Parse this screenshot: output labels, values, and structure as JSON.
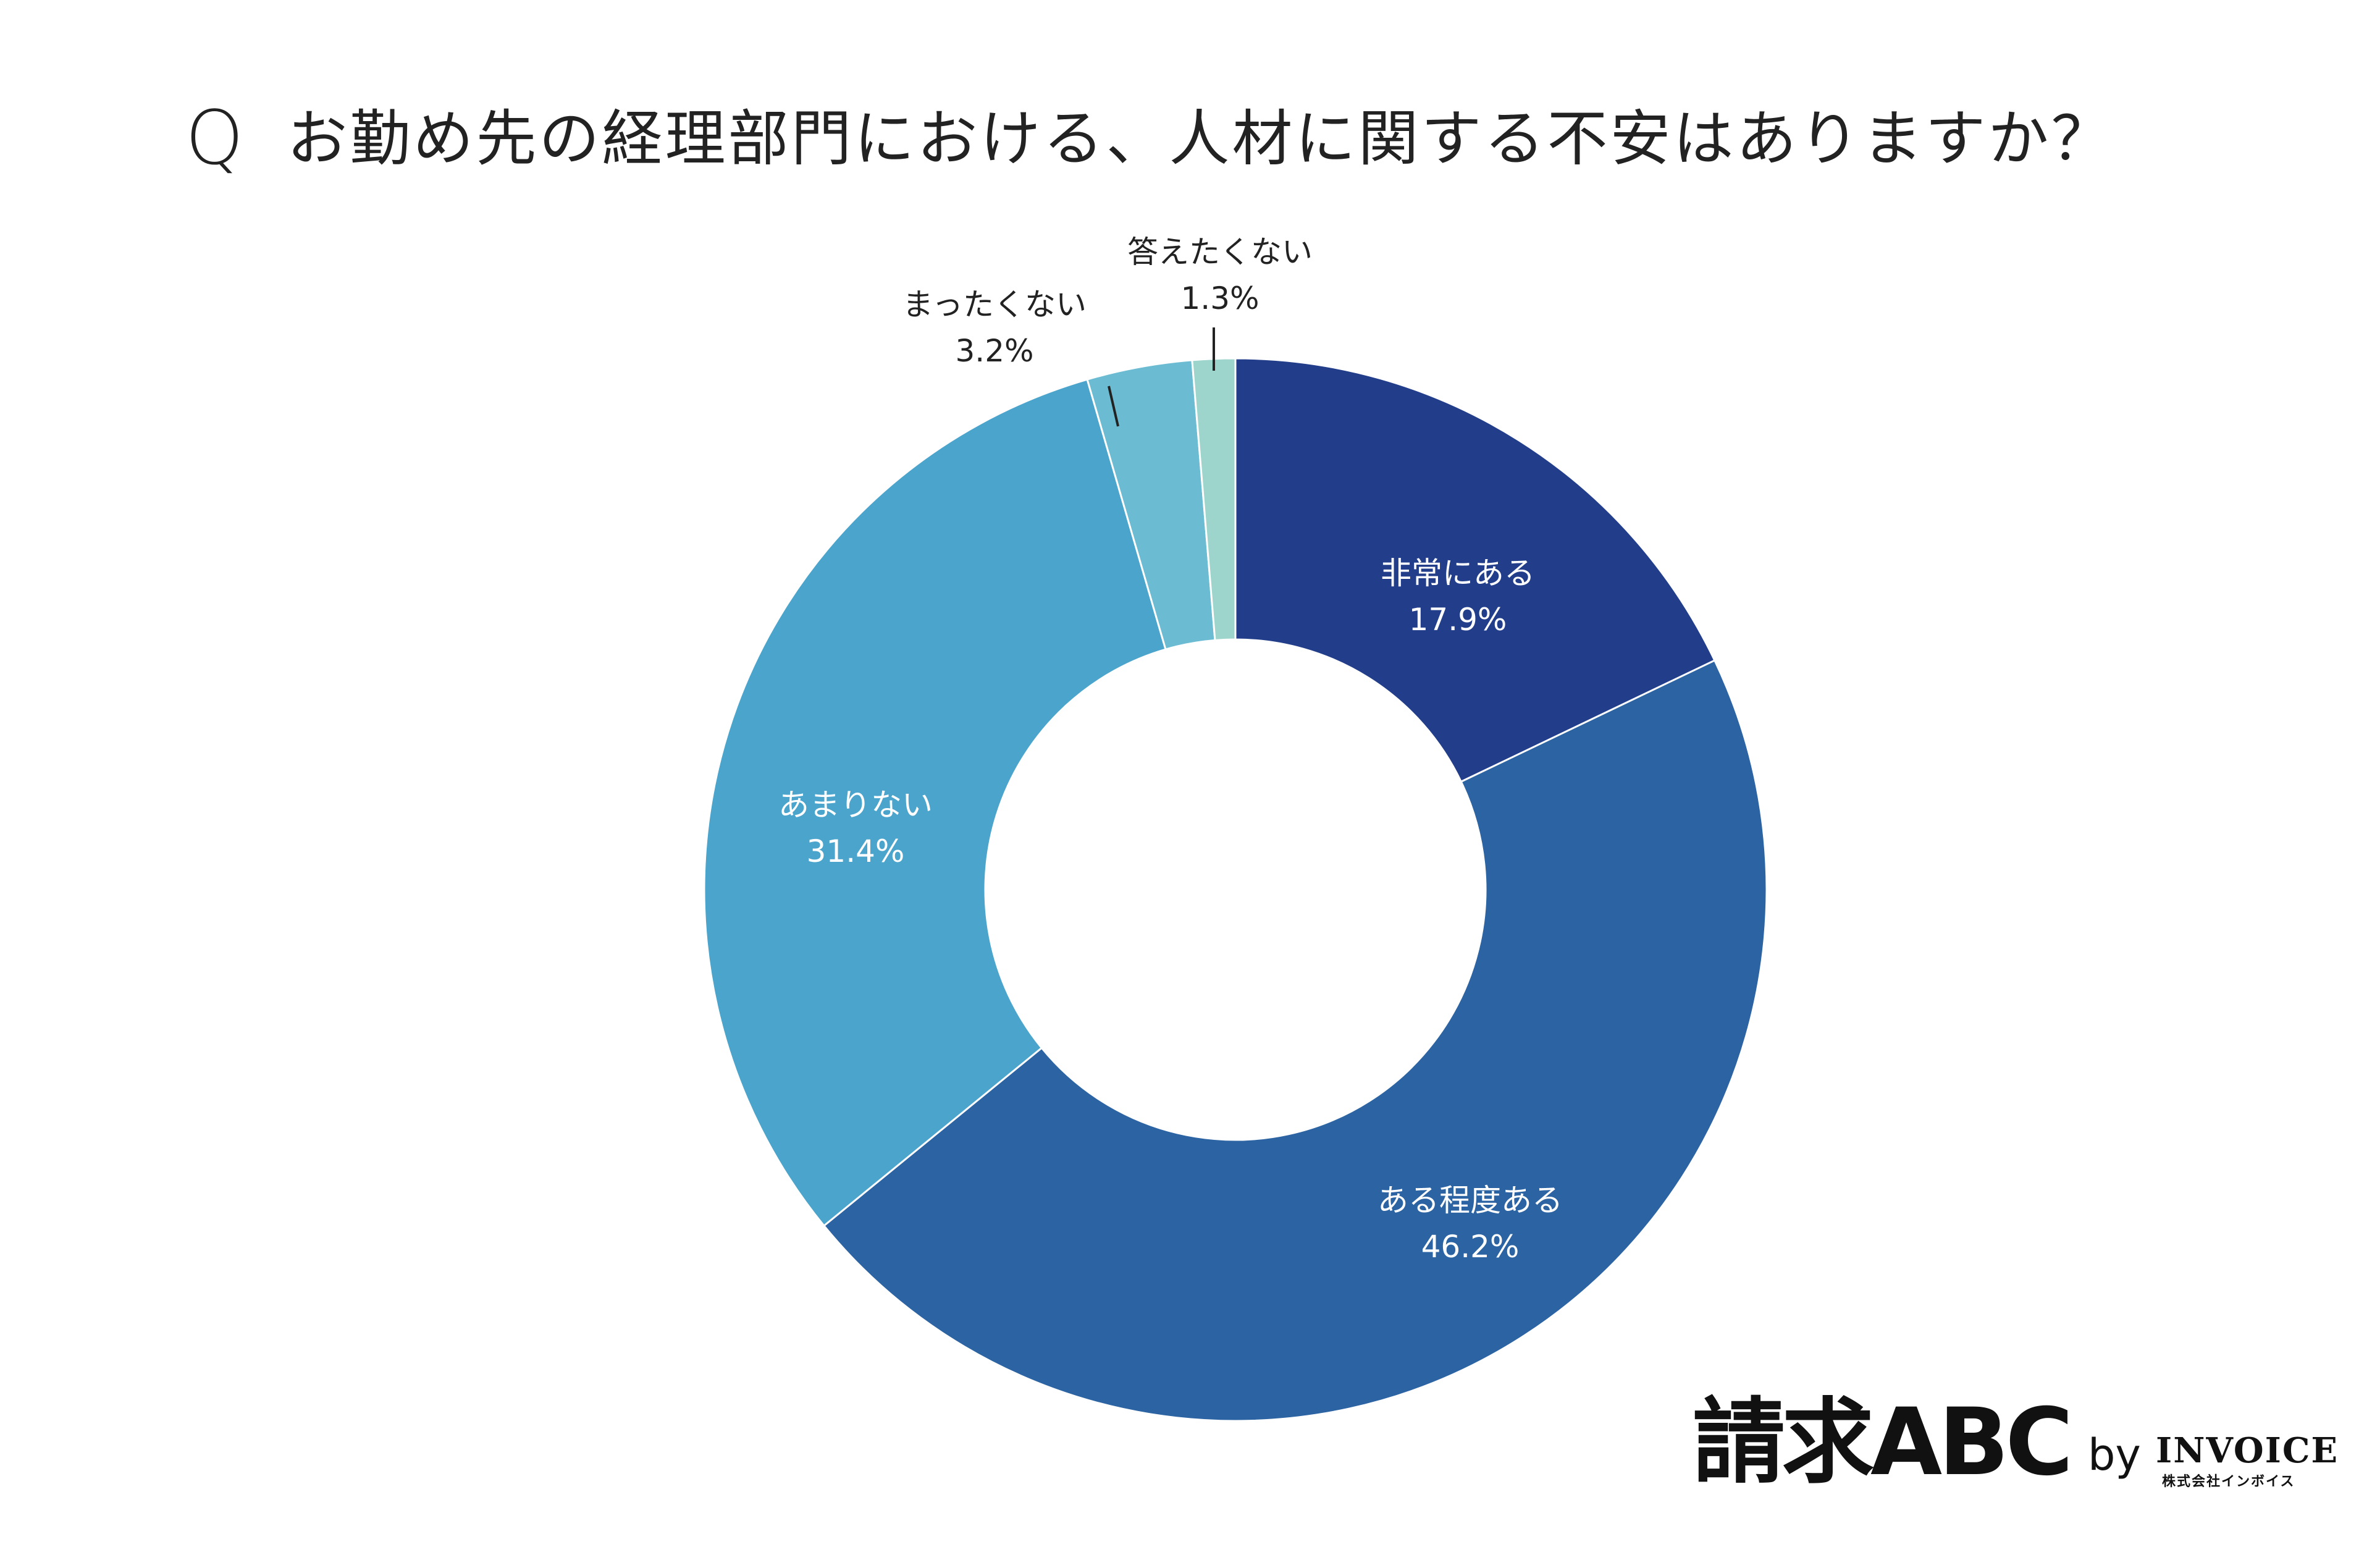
{
  "title": {
    "q_mark": "Q",
    "text": "お勤め先の経理部門における、人材に関する不安はありますか？"
  },
  "chart_data": {
    "type": "pie",
    "variant": "donut",
    "categories": [
      "非常にある",
      "ある程度ある",
      "あまりない",
      "まったくない",
      "答えたくない"
    ],
    "values": [
      17.9,
      46.2,
      31.4,
      3.2,
      1.3
    ],
    "value_labels": [
      "17.9%",
      "46.2%",
      "31.4%",
      "3.2%",
      "1.3%"
    ],
    "colors": [
      "#223e8b",
      "#2b63a3",
      "#4aa4cc",
      "#6bbcd3",
      "#9dd5cc"
    ],
    "label_colors": [
      "#ffffff",
      "#ffffff",
      "#ffffff",
      "#222222",
      "#222222"
    ],
    "start_angle_deg": 0,
    "direction": "clockwise"
  },
  "logo": {
    "main": "請求ABC",
    "by": "by",
    "invoice": "INVOICE",
    "company": "株式会社インボイス"
  }
}
